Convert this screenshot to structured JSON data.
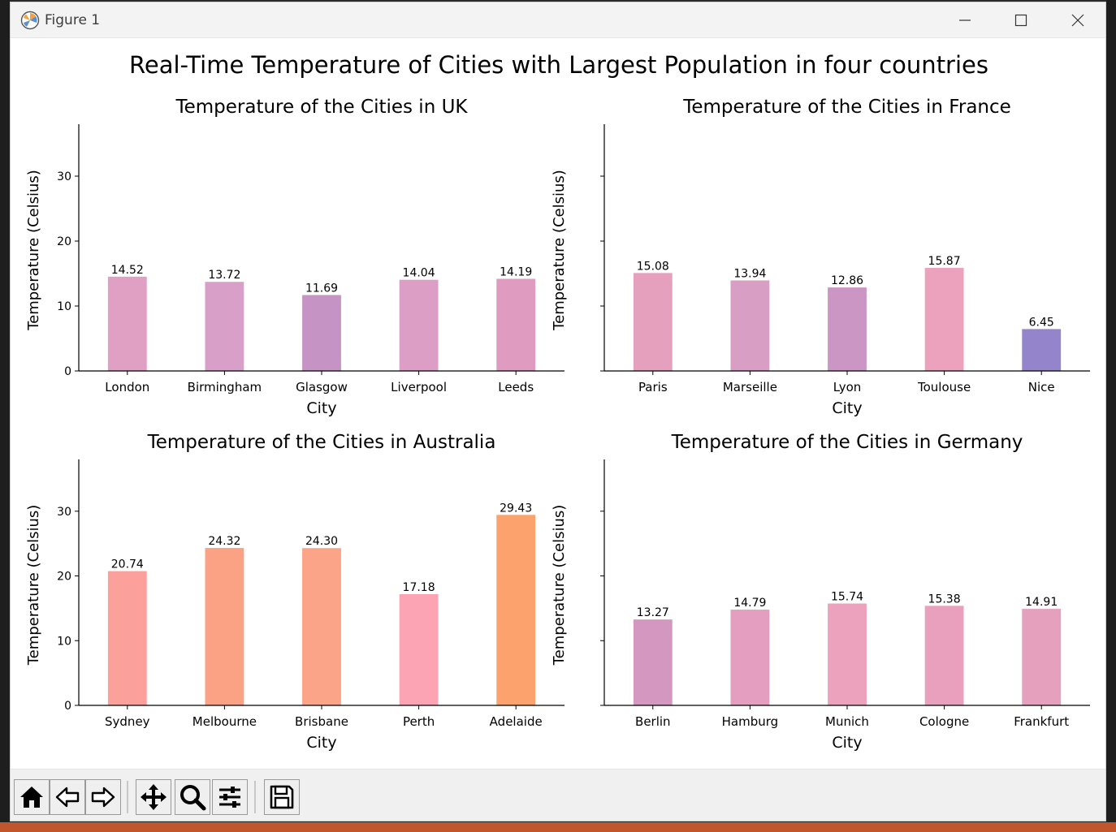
{
  "window": {
    "title": "Figure 1"
  },
  "figure": {
    "suptitle": "Real-Time Temperature of Cities with Largest Population in four countries"
  },
  "toolbar": {
    "buttons": [
      "home-icon",
      "back-icon",
      "forward-icon",
      "pan-icon",
      "zoom-icon",
      "configure-icon",
      "save-icon"
    ]
  },
  "chart_data": [
    {
      "type": "bar",
      "title": "Temperature of the Cities in UK",
      "xlabel": "City",
      "ylabel": "Temperature (Celsius)",
      "ylim": [
        0,
        38
      ],
      "yticks": [
        0,
        10,
        20,
        30
      ],
      "show_ytick_labels": true,
      "categories": [
        "London",
        "Birmingham",
        "Glasgow",
        "Liverpool",
        "Leeds"
      ],
      "values": [
        14.52,
        13.72,
        11.69,
        14.04,
        14.19
      ],
      "value_labels": [
        "14.52",
        "13.72",
        "11.69",
        "14.04",
        "14.19"
      ],
      "colors": [
        "#e0a0c4",
        "#d8a0c8",
        "#c694c4",
        "#dc9ec4",
        "#e09cc0"
      ]
    },
    {
      "type": "bar",
      "title": "Temperature of the Cities in France",
      "xlabel": "City",
      "ylabel": "Temperature (Celsius)",
      "ylim": [
        0,
        38
      ],
      "yticks": [
        0,
        10,
        20,
        30
      ],
      "show_ytick_labels": false,
      "categories": [
        "Paris",
        "Marseille",
        "Lyon",
        "Toulouse",
        "Nice"
      ],
      "values": [
        15.08,
        13.94,
        12.86,
        15.87,
        6.45
      ],
      "value_labels": [
        "15.08",
        "13.94",
        "12.86",
        "15.87",
        "6.45"
      ],
      "colors": [
        "#e4a0bc",
        "#d89ec4",
        "#cc96c4",
        "#eca2bc",
        "#9484cc"
      ]
    },
    {
      "type": "bar",
      "title": "Temperature of the Cities in Australia",
      "xlabel": "City",
      "ylabel": "Temperature (Celsius)",
      "ylim": [
        0,
        38
      ],
      "yticks": [
        0,
        10,
        20,
        30
      ],
      "show_ytick_labels": true,
      "categories": [
        "Sydney",
        "Melbourne",
        "Brisbane",
        "Perth",
        "Adelaide"
      ],
      "values": [
        20.74,
        24.32,
        24.3,
        17.18,
        29.43
      ],
      "value_labels": [
        "20.74",
        "24.32",
        "24.30",
        "17.18",
        "29.43"
      ],
      "colors": [
        "#fca09c",
        "#fca284",
        "#fca488",
        "#fca4b4",
        "#fca26c"
      ]
    },
    {
      "type": "bar",
      "title": "Temperature of the Cities in Germany",
      "xlabel": "City",
      "ylabel": "Temperature (Celsius)",
      "ylim": [
        0,
        38
      ],
      "yticks": [
        0,
        10,
        20,
        30
      ],
      "show_ytick_labels": false,
      "categories": [
        "Berlin",
        "Hamburg",
        "Munich",
        "Cologne",
        "Frankfurt"
      ],
      "values": [
        13.27,
        14.79,
        15.74,
        15.38,
        14.91
      ],
      "value_labels": [
        "13.27",
        "14.79",
        "15.74",
        "15.38",
        "14.91"
      ],
      "colors": [
        "#d498c0",
        "#e49ec0",
        "#eca2bc",
        "#e8a0bc",
        "#e4a0bc"
      ]
    }
  ]
}
